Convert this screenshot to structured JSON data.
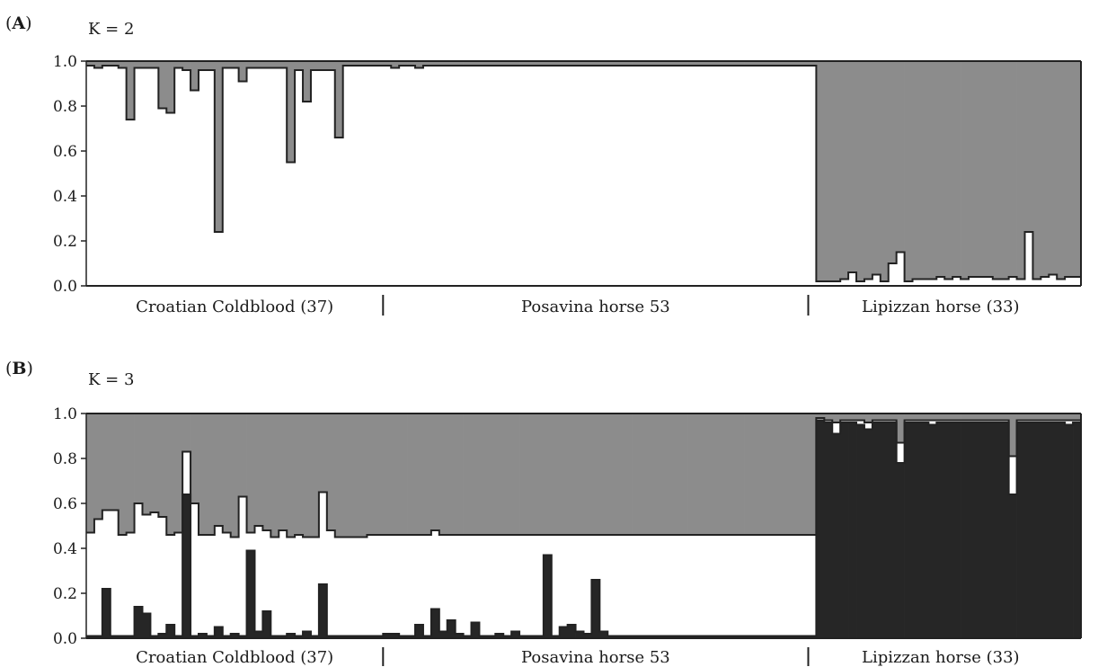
{
  "colors": {
    "cluster_white": "#ffffff",
    "cluster_gray": "#8c8c8c",
    "cluster_black": "#262626",
    "outline": "#222222"
  },
  "chart_data": [
    {
      "type": "bar",
      "subtype": "stacked",
      "panel": "A",
      "title": "K = 2",
      "ylim": [
        0,
        1
      ],
      "yticks": [
        "0.0",
        "0.2",
        "0.4",
        "0.6",
        "0.8",
        "1.0"
      ],
      "groups": [
        {
          "label": "Croatian Coldblood (37)",
          "n": 37
        },
        {
          "label": "Posavina horse 53",
          "n": 53
        },
        {
          "label": "Lipizzan horse (33)",
          "n": 33
        }
      ],
      "series": [
        {
          "color": "#ffffff",
          "values": [
            0.98,
            0.97,
            0.98,
            0.98,
            0.97,
            0.74,
            0.97,
            0.97,
            0.97,
            0.79,
            0.77,
            0.97,
            0.96,
            0.87,
            0.96,
            0.96,
            0.24,
            0.97,
            0.97,
            0.91,
            0.97,
            0.97,
            0.97,
            0.97,
            0.97,
            0.55,
            0.96,
            0.82,
            0.96,
            0.96,
            0.96,
            0.66,
            0.98,
            0.98,
            0.98,
            0.98,
            0.98,
            0.98,
            0.97,
            0.98,
            0.98,
            0.97,
            0.98,
            0.98,
            0.98,
            0.98,
            0.98,
            0.98,
            0.98,
            0.98,
            0.98,
            0.98,
            0.98,
            0.98,
            0.98,
            0.98,
            0.98,
            0.98,
            0.98,
            0.98,
            0.98,
            0.98,
            0.98,
            0.98,
            0.98,
            0.98,
            0.98,
            0.98,
            0.98,
            0.98,
            0.98,
            0.98,
            0.98,
            0.98,
            0.98,
            0.98,
            0.98,
            0.98,
            0.98,
            0.98,
            0.98,
            0.98,
            0.98,
            0.98,
            0.98,
            0.98,
            0.98,
            0.98,
            0.98,
            0.98,
            0.98,
            0.02,
            0.02,
            0.02,
            0.03,
            0.06,
            0.02,
            0.03,
            0.05,
            0.02,
            0.1,
            0.15,
            0.02,
            0.03,
            0.03,
            0.03,
            0.04,
            0.03,
            0.04,
            0.03,
            0.04,
            0.04,
            0.04,
            0.03,
            0.03,
            0.04,
            0.03,
            0.24,
            0.03,
            0.04,
            0.05,
            0.03,
            0.04,
            0.04
          ]
        },
        {
          "color": "#8c8c8c",
          "values": [
            0.02,
            0.03,
            0.02,
            0.02,
            0.03,
            0.26,
            0.03,
            0.03,
            0.03,
            0.21,
            0.23,
            0.03,
            0.04,
            0.13,
            0.04,
            0.04,
            0.76,
            0.03,
            0.03,
            0.09,
            0.03,
            0.03,
            0.03,
            0.03,
            0.03,
            0.45,
            0.04,
            0.18,
            0.04,
            0.04,
            0.04,
            0.34,
            0.02,
            0.02,
            0.02,
            0.02,
            0.02,
            0.02,
            0.03,
            0.02,
            0.02,
            0.03,
            0.02,
            0.02,
            0.02,
            0.02,
            0.02,
            0.02,
            0.02,
            0.02,
            0.02,
            0.02,
            0.02,
            0.02,
            0.02,
            0.02,
            0.02,
            0.02,
            0.02,
            0.02,
            0.02,
            0.02,
            0.02,
            0.02,
            0.02,
            0.02,
            0.02,
            0.02,
            0.02,
            0.02,
            0.02,
            0.02,
            0.02,
            0.02,
            0.02,
            0.02,
            0.02,
            0.02,
            0.02,
            0.02,
            0.02,
            0.02,
            0.02,
            0.02,
            0.02,
            0.02,
            0.02,
            0.02,
            0.02,
            0.02,
            0.02,
            0.98,
            0.98,
            0.98,
            0.97,
            0.94,
            0.98,
            0.97,
            0.95,
            0.98,
            0.9,
            0.85,
            0.98,
            0.97,
            0.97,
            0.97,
            0.96,
            0.97,
            0.96,
            0.97,
            0.96,
            0.96,
            0.96,
            0.97,
            0.97,
            0.96,
            0.97,
            0.76,
            0.97,
            0.96,
            0.95,
            0.97,
            0.96,
            0.96
          ]
        }
      ]
    },
    {
      "type": "bar",
      "subtype": "stacked",
      "panel": "B",
      "title": "K = 3",
      "ylim": [
        0,
        1
      ],
      "yticks": [
        "0.0",
        "0.2",
        "0.4",
        "0.6",
        "0.8",
        "1.0"
      ],
      "groups": [
        {
          "label": "Croatian Coldblood (37)",
          "n": 37
        },
        {
          "label": "Posavina horse 53",
          "n": 53
        },
        {
          "label": "Lipizzan horse (33)",
          "n": 33
        }
      ],
      "series": [
        {
          "color": "#262626",
          "values": [
            0.01,
            0.01,
            0.22,
            0.01,
            0.01,
            0.01,
            0.14,
            0.11,
            0.01,
            0.02,
            0.06,
            0.01,
            0.64,
            0.01,
            0.02,
            0.01,
            0.05,
            0.01,
            0.02,
            0.01,
            0.39,
            0.03,
            0.12,
            0.01,
            0.01,
            0.02,
            0.01,
            0.03,
            0.01,
            0.24,
            0.01,
            0.01,
            0.01,
            0.01,
            0.01,
            0.01,
            0.01,
            0.02,
            0.02,
            0.01,
            0.01,
            0.06,
            0.01,
            0.13,
            0.03,
            0.08,
            0.02,
            0.01,
            0.07,
            0.01,
            0.01,
            0.02,
            0.01,
            0.03,
            0.01,
            0.01,
            0.01,
            0.37,
            0.01,
            0.05,
            0.06,
            0.03,
            0.02,
            0.26,
            0.03,
            0.01,
            0.01,
            0.01,
            0.01,
            0.01,
            0.01,
            0.01,
            0.01,
            0.01,
            0.01,
            0.01,
            0.01,
            0.01,
            0.01,
            0.01,
            0.01,
            0.01,
            0.01,
            0.01,
            0.01,
            0.01,
            0.01,
            0.01,
            0.01,
            0.01,
            0.01,
            0.97,
            0.96,
            0.91,
            0.96,
            0.96,
            0.95,
            0.93,
            0.96,
            0.96,
            0.96,
            0.78,
            0.96,
            0.96,
            0.96,
            0.95,
            0.96,
            0.96,
            0.96,
            0.96,
            0.96,
            0.96,
            0.96,
            0.96,
            0.96,
            0.64,
            0.96,
            0.96,
            0.96,
            0.96,
            0.96,
            0.96,
            0.95,
            0.96
          ]
        },
        {
          "color": "#ffffff",
          "values": [
            0.46,
            0.52,
            0.35,
            0.56,
            0.45,
            0.46,
            0.46,
            0.44,
            0.55,
            0.52,
            0.4,
            0.46,
            0.19,
            0.59,
            0.44,
            0.45,
            0.45,
            0.46,
            0.43,
            0.62,
            0.08,
            0.47,
            0.36,
            0.44,
            0.47,
            0.43,
            0.45,
            0.42,
            0.44,
            0.41,
            0.47,
            0.44,
            0.44,
            0.44,
            0.44,
            0.45,
            0.45,
            0.44,
            0.44,
            0.45,
            0.45,
            0.4,
            0.45,
            0.35,
            0.43,
            0.38,
            0.44,
            0.45,
            0.39,
            0.45,
            0.45,
            0.44,
            0.45,
            0.43,
            0.45,
            0.45,
            0.45,
            0.09,
            0.45,
            0.41,
            0.4,
            0.43,
            0.44,
            0.2,
            0.43,
            0.45,
            0.45,
            0.45,
            0.45,
            0.45,
            0.45,
            0.45,
            0.45,
            0.45,
            0.45,
            0.45,
            0.45,
            0.45,
            0.45,
            0.45,
            0.45,
            0.45,
            0.45,
            0.45,
            0.45,
            0.45,
            0.45,
            0.45,
            0.45,
            0.45,
            0.45,
            0.01,
            0.01,
            0.05,
            0.01,
            0.01,
            0.02,
            0.03,
            0.01,
            0.01,
            0.01,
            0.09,
            0.01,
            0.01,
            0.01,
            0.02,
            0.01,
            0.01,
            0.01,
            0.01,
            0.01,
            0.01,
            0.01,
            0.01,
            0.01,
            0.17,
            0.01,
            0.01,
            0.01,
            0.01,
            0.01,
            0.01,
            0.02,
            0.01
          ]
        },
        {
          "color": "#8c8c8c",
          "values": [
            0.53,
            0.47,
            0.43,
            0.43,
            0.54,
            0.53,
            0.4,
            0.45,
            0.44,
            0.46,
            0.54,
            0.53,
            0.17,
            0.4,
            0.54,
            0.54,
            0.5,
            0.53,
            0.55,
            0.37,
            0.53,
            0.5,
            0.52,
            0.55,
            0.52,
            0.55,
            0.54,
            0.55,
            0.55,
            0.35,
            0.52,
            0.55,
            0.55,
            0.55,
            0.55,
            0.54,
            0.54,
            0.54,
            0.54,
            0.54,
            0.54,
            0.54,
            0.54,
            0.52,
            0.54,
            0.54,
            0.54,
            0.54,
            0.54,
            0.54,
            0.54,
            0.54,
            0.54,
            0.54,
            0.54,
            0.54,
            0.54,
            0.54,
            0.54,
            0.54,
            0.54,
            0.54,
            0.54,
            0.54,
            0.54,
            0.54,
            0.54,
            0.54,
            0.54,
            0.54,
            0.54,
            0.54,
            0.54,
            0.54,
            0.54,
            0.54,
            0.54,
            0.54,
            0.54,
            0.54,
            0.54,
            0.54,
            0.54,
            0.54,
            0.54,
            0.54,
            0.54,
            0.54,
            0.54,
            0.54,
            0.54,
            0.02,
            0.03,
            0.04,
            0.03,
            0.03,
            0.03,
            0.04,
            0.03,
            0.03,
            0.03,
            0.13,
            0.03,
            0.03,
            0.03,
            0.03,
            0.03,
            0.03,
            0.03,
            0.03,
            0.03,
            0.03,
            0.03,
            0.03,
            0.03,
            0.19,
            0.03,
            0.03,
            0.03,
            0.03,
            0.03,
            0.03,
            0.03,
            0.03
          ]
        }
      ]
    }
  ],
  "panels": [
    {
      "letter_open": "(",
      "letter": "A",
      "letter_close": ")",
      "klabel": "K = 2"
    },
    {
      "letter_open": "(",
      "letter": "B",
      "letter_close": ")",
      "klabel": "K = 3"
    }
  ]
}
